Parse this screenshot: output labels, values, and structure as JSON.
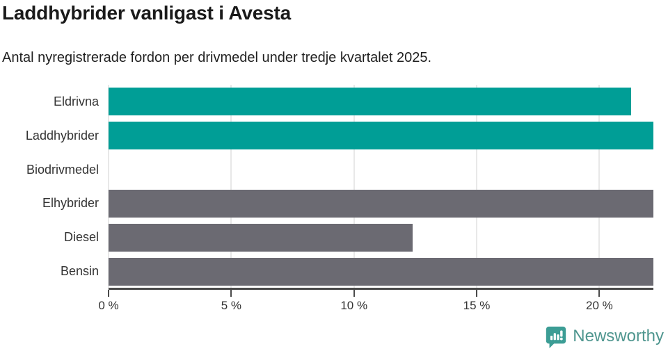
{
  "header": {
    "title": "Laddhybrider vanligast i Avesta",
    "subtitle": "Antal nyregistrerade fordon per drivmedel under tredje kvartalet 2025."
  },
  "chart_data": {
    "type": "bar",
    "orientation": "horizontal",
    "title": "Laddhybrider vanligast i Avesta",
    "subtitle": "Antal nyregistrerade fordon per drivmedel under tredje kvartalet 2025.",
    "categories": [
      "Eldrivna",
      "Laddhybrider",
      "Biodrivmedel",
      "Elhybrider",
      "Diesel",
      "Bensin"
    ],
    "values": [
      21.3,
      22.2,
      0,
      22.2,
      12.4,
      22.2
    ],
    "bar_colors": [
      "#009e96",
      "#009e96",
      "#6b6a72",
      "#6b6a72",
      "#6b6a72",
      "#6b6a72"
    ],
    "bars_clipped_at_right_edge": [
      "Laddhybrider",
      "Elhybrider",
      "Bensin"
    ],
    "xlim": [
      0,
      22.2
    ],
    "xticks": [
      {
        "value": 0,
        "label": "0 %"
      },
      {
        "value": 5,
        "label": "5 %"
      },
      {
        "value": 10,
        "label": "10 %"
      },
      {
        "value": 15,
        "label": "15 %"
      },
      {
        "value": 20,
        "label": "20 %"
      }
    ],
    "grid": true,
    "legend": false
  },
  "colors": {
    "highlight_bar": "#009e96",
    "default_bar": "#6b6a72",
    "gridline": "#e8e8e8",
    "axis": "#4a4a4a",
    "logo_mark": "#3c9d95",
    "logo_text": "#4f968f"
  },
  "footer": {
    "brand": "Newsworthy"
  }
}
